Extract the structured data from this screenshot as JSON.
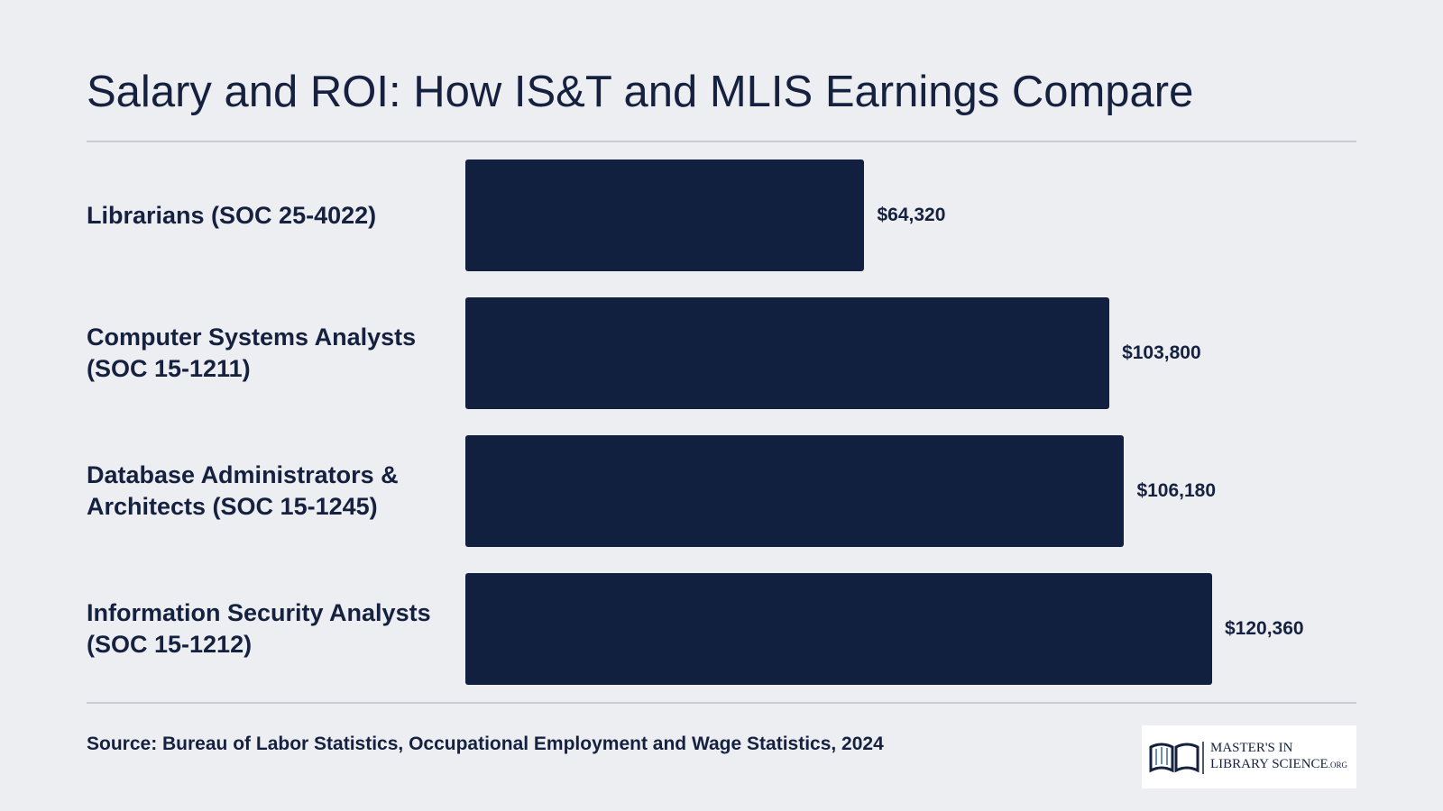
{
  "chart_data": {
    "type": "bar",
    "orientation": "horizontal",
    "title": "Salary and ROI: How IS&T and MLIS Earnings Compare",
    "categories": [
      "Librarians (SOC 25-4022)",
      "Computer Systems Analysts (SOC 15-1211)",
      "Database Administrators & Architects (SOC 15-1245)",
      "Information Security Analysts (SOC 15-1212)"
    ],
    "values": [
      64320,
      103800,
      106180,
      120360
    ],
    "value_labels": [
      "$64,320",
      "$103,800",
      "$106,180",
      "$120,360"
    ],
    "color": "#12203f",
    "source": "Source: Bureau of Labor Statistics, Occupational Employment and Wage Statistics, 2024"
  },
  "logo": {
    "line1": "MASTER'S IN",
    "line2": "LIBRARY SCIENCE",
    "suffix": ".ORG"
  }
}
